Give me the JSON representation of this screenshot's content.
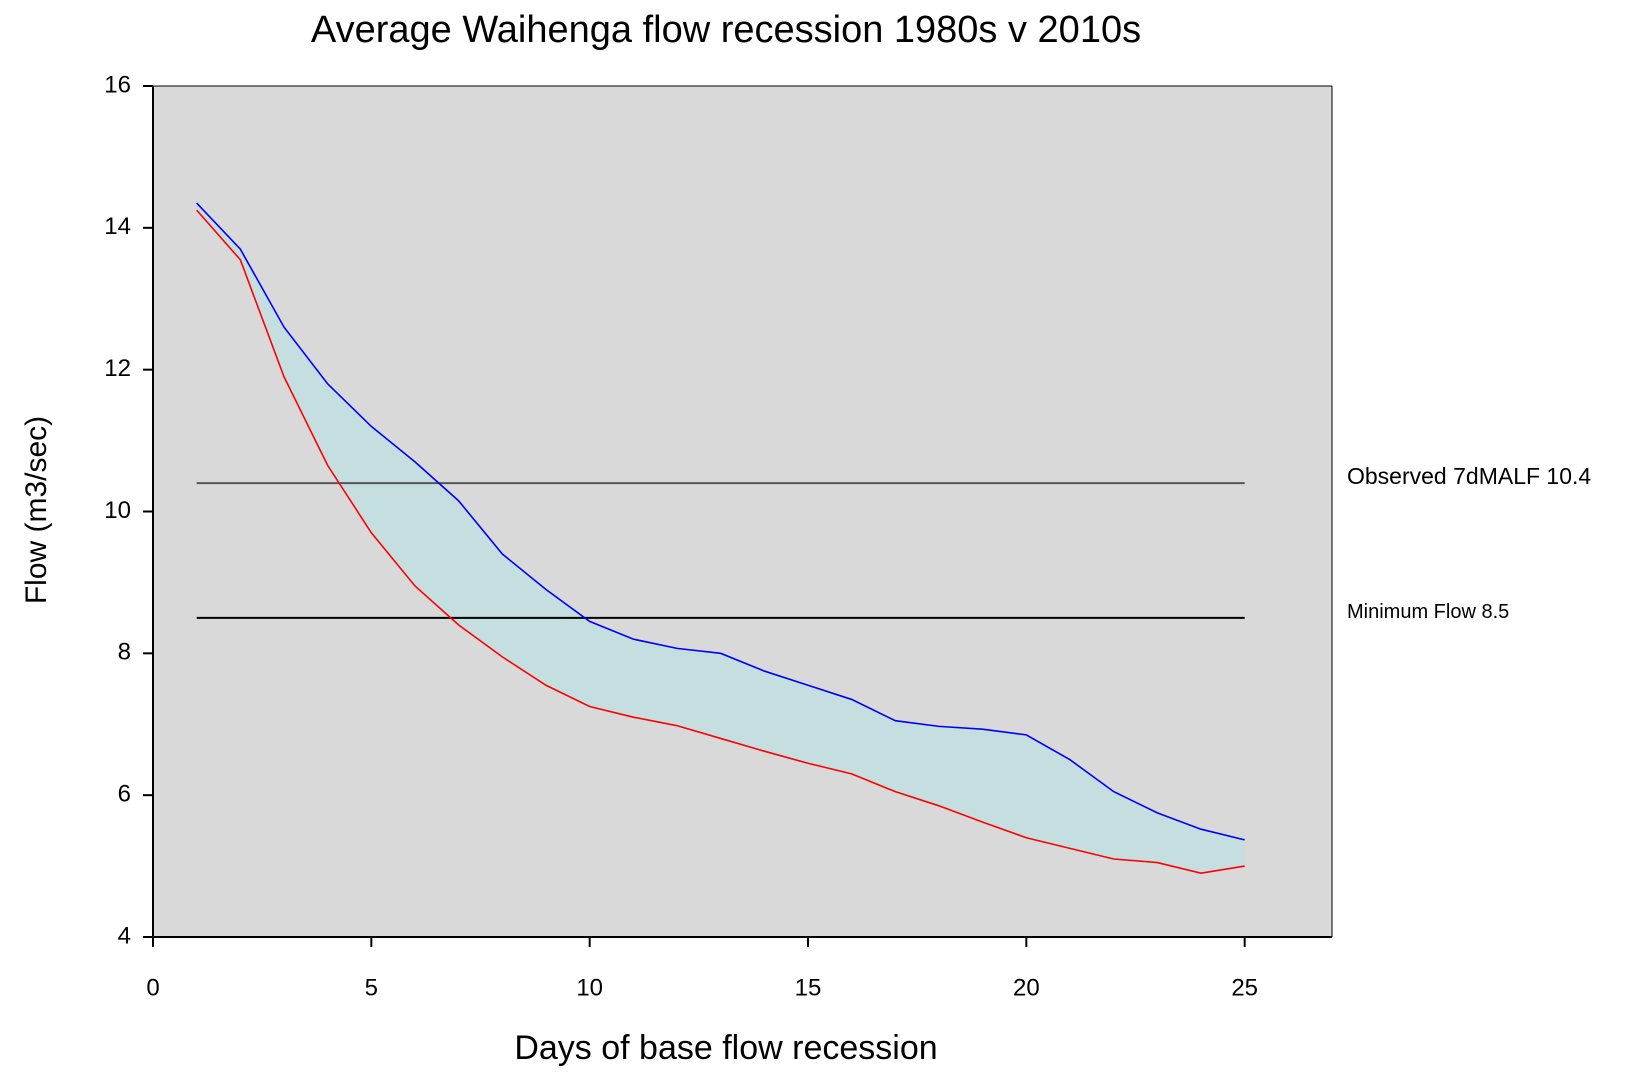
{
  "chart_data": {
    "type": "line",
    "title": "Average Waihenga flow recession 1980s v 2010s",
    "x_label": "Days of base flow recession",
    "y_label": "Flow (m3/sec)",
    "x": [
      1,
      2,
      3,
      4,
      5,
      6,
      7,
      8,
      9,
      10,
      11,
      12,
      13,
      14,
      15,
      16,
      17,
      18,
      19,
      20,
      21,
      22,
      23,
      24,
      25
    ],
    "series": [
      {
        "color": "#0000ff",
        "values": [
          14.35,
          13.7,
          12.6,
          11.8,
          11.2,
          10.7,
          10.15,
          9.4,
          8.9,
          8.45,
          8.2,
          8.07,
          8.0,
          7.75,
          7.55,
          7.35,
          7.05,
          6.97,
          6.93,
          6.85,
          6.5,
          6.05,
          5.75,
          5.52,
          5.37
        ]
      },
      {
        "color": "#ff0000",
        "values": [
          14.25,
          13.55,
          11.9,
          10.65,
          9.7,
          8.95,
          8.4,
          7.95,
          7.55,
          7.25,
          7.1,
          6.98,
          6.8,
          6.62,
          6.45,
          6.3,
          6.05,
          5.85,
          5.62,
          5.4,
          5.25,
          5.1,
          5.05,
          4.9,
          5.0
        ]
      }
    ],
    "fill_between_color": "#c5dfe0",
    "background": "#d9d9d9",
    "reference_lines": [
      {
        "label": "Observed 7dMALF 10.4",
        "value": 10.4,
        "color": "#555555",
        "x_range": [
          1,
          25
        ]
      },
      {
        "label": "Minimum Flow 8.5",
        "value": 8.5,
        "color": "#000000",
        "x_range": [
          1,
          25
        ]
      }
    ],
    "xlim": [
      0,
      27
    ],
    "ylim": [
      4,
      16
    ],
    "xticks": [
      0,
      5,
      10,
      15,
      20,
      25
    ],
    "yticks": [
      4,
      6,
      8,
      10,
      12,
      14,
      16
    ]
  }
}
